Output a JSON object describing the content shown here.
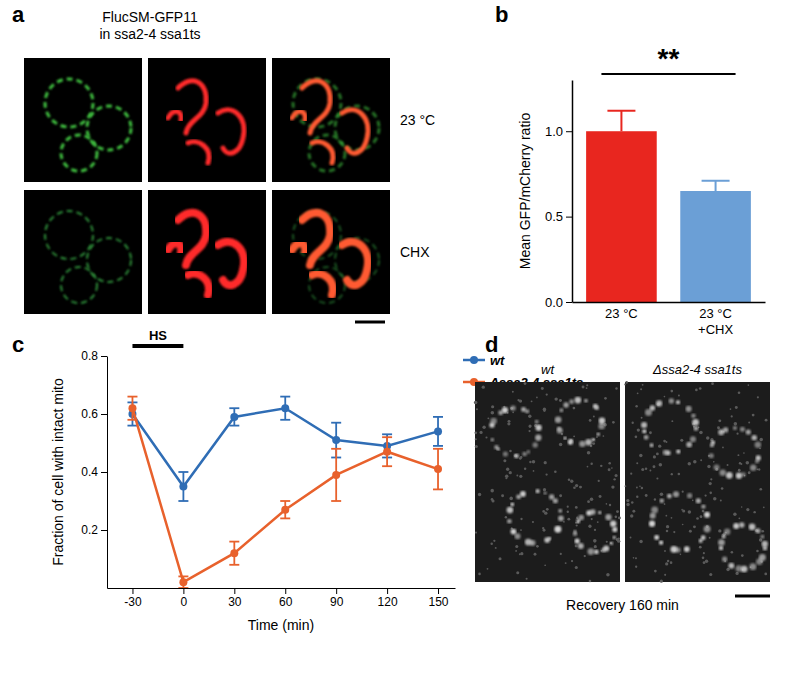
{
  "panels": [
    {
      "panel_label": "a",
      "title": [
        "FlucSM-GFP11",
        "in ssa2-4 ssa1ts"
      ],
      "rows": [
        "23 °C",
        "CHX"
      ]
    },
    {
      "panel_label": "d",
      "columns": [
        "wt",
        "Δssa2-4 ssa1ts"
      ],
      "caption": "Recovery 160 min"
    }
  ],
  "chart_data": [
    {
      "panel_label": "b",
      "type": "bar",
      "categories": [
        "23 °C",
        "23 °C\n+CHX"
      ],
      "values": [
        1.0,
        0.65
      ],
      "errors": [
        0.12,
        0.06
      ],
      "colors": [
        "#e8261f",
        "#6b9fd6"
      ],
      "ylabel": "Mean GFP/mCherry ratio",
      "ylim": [
        0,
        1.3
      ],
      "yticks": [
        {
          "value": 0,
          "label": "0.0"
        },
        {
          "value": 0.5,
          "label": "0.5"
        },
        {
          "value": 1,
          "label": "1.0"
        }
      ],
      "annotations": [
        {
          "text": "**"
        }
      ]
    },
    {
      "panel_label": "c",
      "type": "line",
      "xlabel": "Time (min)",
      "ylabel": "Fraction of cell with intact mito",
      "x": [
        -30,
        0,
        30,
        60,
        90,
        120,
        150
      ],
      "series": [
        {
          "name": "wt",
          "color": "#2f6db5",
          "marker": "circle",
          "values": [
            0.6,
            0.35,
            0.59,
            0.62,
            0.51,
            0.49,
            0.54
          ],
          "errors": [
            0.04,
            0.05,
            0.03,
            0.04,
            0.06,
            0.04,
            0.05
          ]
        },
        {
          "name": "Δssa2-4 ssa1ts",
          "color": "#e8612c",
          "marker": "circle",
          "values": [
            0.62,
            0.02,
            0.12,
            0.27,
            0.39,
            0.47,
            0.41
          ],
          "errors": [
            0.04,
            0.02,
            0.04,
            0.03,
            0.09,
            0.05,
            0.07
          ]
        }
      ],
      "xlim": [
        -45,
        160
      ],
      "xticks": [
        -30,
        0,
        30,
        60,
        90,
        120,
        150
      ],
      "ylim": [
        0,
        0.8
      ],
      "yticks": [
        0.2,
        0.4,
        0.6,
        0.8
      ],
      "legend": "right",
      "annotations": [
        {
          "text": "HS",
          "x0": -30,
          "x1": 0
        }
      ]
    }
  ]
}
